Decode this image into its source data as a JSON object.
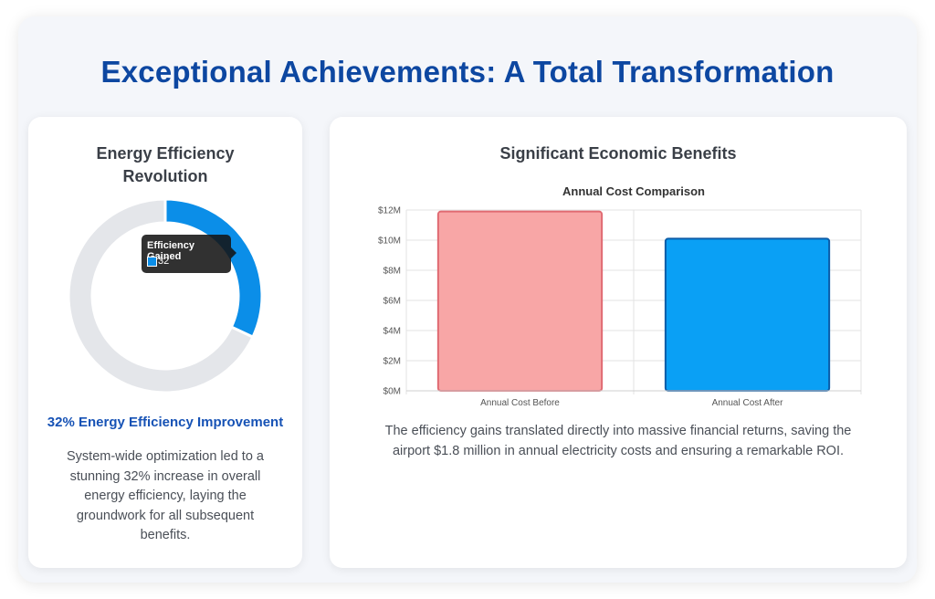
{
  "page": {
    "title": "Exceptional Achievements: A Total Transformation"
  },
  "left_card": {
    "title": "Energy Efficiency Revolution",
    "tooltip": {
      "title": "Efficiency Gained",
      "value": "32"
    },
    "highlight": "32% Energy Efficiency Improvement",
    "description": "System-wide optimization led to a stunning 32% increase in overall energy efficiency, laying the groundwork for all subsequent benefits."
  },
  "right_card": {
    "title": "Significant Economic Benefits",
    "description": "The efficiency gains translated directly into massive financial returns, saving the airport $1.8 million in annual electricity costs and ensuring a remarkable ROI."
  },
  "colors": {
    "title": "#0d47a1",
    "accent_blue": "#0b8ee8",
    "track_gray": "#e4e6ea",
    "bar_before_fill": "#f8a6a6",
    "bar_before_border": "#e06a72",
    "bar_after_fill": "#0aa0f5",
    "bar_after_border": "#0b5ca8"
  },
  "chart_data": [
    {
      "type": "pie",
      "variant": "doughnut",
      "labels": [
        "Efficiency Gained",
        "Remaining"
      ],
      "values": [
        32,
        68
      ],
      "colors": [
        "#0b8ee8",
        "#e4e6ea"
      ],
      "title": ""
    },
    {
      "type": "bar",
      "title": "Annual Cost Comparison",
      "categories": [
        "Annual Cost Before",
        "Annual Cost After"
      ],
      "values": [
        11.9,
        10.1
      ],
      "unit": "M",
      "ylim": [
        0,
        12
      ],
      "yticks": [
        0,
        2,
        4,
        6,
        8,
        10,
        12
      ],
      "ytick_labels": [
        "$0M",
        "$2M",
        "$4M",
        "$6M",
        "$8M",
        "$10M",
        "$12M"
      ],
      "xlabel": "",
      "ylabel": "",
      "grid": true,
      "legend": "none"
    }
  ]
}
